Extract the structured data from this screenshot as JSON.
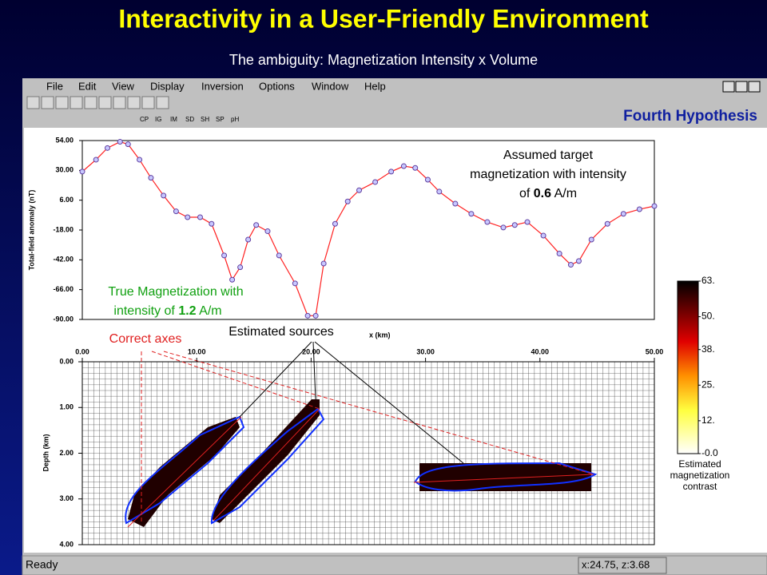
{
  "slide": {
    "title": "Interactivity in a User-Friendly Environment",
    "subtitle": "The ambiguity: Magnetization Intensity x Volume"
  },
  "window": {
    "menu": [
      "File",
      "Edit",
      "View",
      "Display",
      "Inversion",
      "Options",
      "Window",
      "Help"
    ],
    "toolbar_labels": [
      "CP",
      "IG",
      "IM",
      "SD",
      "SH",
      "SP",
      "pH"
    ],
    "status": "Ready",
    "coords": "x:24.75, z:3.68"
  },
  "annotations": {
    "hypothesis": "Fourth Hypothesis",
    "assumed": [
      "Assumed target",
      "magnetization with intensity",
      "of ",
      "0.6",
      " A/m"
    ],
    "true": [
      "True Magnetization with",
      "intensity of ",
      "1.2",
      " A/m"
    ],
    "correct_axes": "Correct axes",
    "estimated_sources": "Estimated sources"
  },
  "profile": {
    "y_label": "Total-field anomaly (nT)",
    "x_label": "x (km)",
    "ylim": [
      -90,
      54
    ],
    "yticks": [
      {
        "value": 54,
        "label": "54.00"
      },
      {
        "value": 30,
        "label": "30.00"
      },
      {
        "value": 6,
        "label": "6.00"
      },
      {
        "value": -18,
        "label": "-18.00"
      },
      {
        "value": -42,
        "label": "-42.00"
      },
      {
        "value": -66,
        "label": "-66.00"
      },
      {
        "value": -90,
        "label": "-90.00"
      }
    ],
    "x": [
      0,
      1.2,
      2.2,
      3.3,
      4,
      5,
      6,
      7.1,
      8.2,
      9.2,
      10.3,
      11.3,
      12.4,
      13.1,
      13.8,
      14.5,
      15.2,
      16.2,
      17.2,
      18.6,
      19.7,
      20.4,
      21.1,
      22.1,
      23.2,
      24.2,
      25.6,
      27,
      28.1,
      29.1,
      30.2,
      31.2,
      32.6,
      34,
      35.4,
      36.8,
      37.8,
      38.9,
      40.3,
      41.7,
      42.7,
      43.4,
      44.5,
      45.9,
      47.3,
      48.7,
      50
    ],
    "values": [
      29,
      38.6,
      48,
      53,
      51,
      38.6,
      24,
      9.7,
      -3,
      -7.7,
      -7.7,
      -13,
      -38.5,
      -58,
      -48,
      -25.7,
      -14,
      -19,
      -38.5,
      -61,
      -87,
      -87,
      -45,
      -13,
      5,
      14,
      20.6,
      29,
      33.4,
      32,
      22.5,
      12.9,
      3.2,
      -5,
      -11.6,
      -16,
      -14,
      -11.6,
      -22.5,
      -37,
      -46,
      -43,
      -25.7,
      -13,
      -5,
      -1.3,
      1.3
    ]
  },
  "section": {
    "y_label": "Depth (km)",
    "xlim": [
      0,
      50
    ],
    "zlim": [
      0,
      4
    ],
    "xticks": [
      {
        "value": 0,
        "label": "0.00"
      },
      {
        "value": 10,
        "label": "10.00"
      },
      {
        "value": 20,
        "label": "20.00"
      },
      {
        "value": 30,
        "label": "30.00"
      },
      {
        "value": 40,
        "label": "40.00"
      },
      {
        "value": 50,
        "label": "50.00"
      }
    ],
    "zticks": [
      {
        "value": 0,
        "label": "0.00"
      },
      {
        "value": 1,
        "label": "1.00"
      },
      {
        "value": 2,
        "label": "2.00"
      },
      {
        "value": 3,
        "label": "3.00"
      },
      {
        "value": 4,
        "label": "4.00"
      }
    ]
  },
  "colorbar": {
    "lim": [
      0,
      63
    ],
    "ticks": [
      {
        "value": 63,
        "label": "63."
      },
      {
        "value": 50,
        "label": "50."
      },
      {
        "value": 38,
        "label": "38."
      },
      {
        "value": 25,
        "label": "25."
      },
      {
        "value": 12,
        "label": "12."
      },
      {
        "value": 0,
        "label": "-0.0"
      }
    ],
    "label": [
      "Estimated",
      "magnetization",
      "contrast"
    ]
  }
}
